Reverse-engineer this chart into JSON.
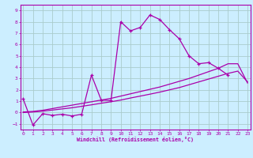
{
  "xlabel": "Windchill (Refroidissement éolien,°C)",
  "bg_color": "#cceeff",
  "grid_color": "#aacccc",
  "line_color": "#aa00aa",
  "spine_color": "#aa00aa",
  "x_ticks": [
    0,
    1,
    2,
    3,
    4,
    5,
    6,
    7,
    8,
    9,
    10,
    11,
    12,
    13,
    14,
    15,
    16,
    17,
    18,
    19,
    20,
    21,
    22,
    23
  ],
  "y_ticks": [
    -1,
    0,
    1,
    2,
    3,
    4,
    5,
    6,
    7,
    8,
    9
  ],
  "xlim": [
    -0.3,
    23.3
  ],
  "ylim": [
    -1.5,
    9.5
  ],
  "series0_x": [
    0,
    1,
    2,
    3,
    4,
    5,
    6,
    7,
    8,
    9,
    10,
    11,
    12,
    13,
    14,
    15,
    16,
    17,
    18,
    19,
    20,
    21
  ],
  "series0_y": [
    1.2,
    -1.1,
    -0.1,
    -0.25,
    -0.15,
    -0.3,
    -0.15,
    3.3,
    1.1,
    1.05,
    8.0,
    7.2,
    7.5,
    8.6,
    8.2,
    7.3,
    6.5,
    5.0,
    4.3,
    4.4,
    3.9,
    3.3
  ],
  "series1_x": [
    0,
    1,
    2,
    3,
    4,
    5,
    6,
    7,
    8,
    9,
    10,
    11,
    12,
    13,
    14,
    15,
    16,
    17,
    18,
    19,
    20,
    21,
    22,
    23
  ],
  "series1_y": [
    0.05,
    0.1,
    0.2,
    0.35,
    0.5,
    0.65,
    0.8,
    0.95,
    1.1,
    1.25,
    1.45,
    1.65,
    1.85,
    2.05,
    2.25,
    2.5,
    2.75,
    3.0,
    3.3,
    3.6,
    3.9,
    4.3,
    4.3,
    2.6
  ],
  "series2_x": [
    0,
    1,
    2,
    3,
    4,
    5,
    6,
    7,
    8,
    9,
    10,
    11,
    12,
    13,
    14,
    15,
    16,
    17,
    18,
    19,
    20,
    21,
    22,
    23
  ],
  "series2_y": [
    0.0,
    0.05,
    0.12,
    0.22,
    0.32,
    0.42,
    0.55,
    0.68,
    0.82,
    0.95,
    1.1,
    1.28,
    1.45,
    1.62,
    1.8,
    2.0,
    2.2,
    2.45,
    2.7,
    2.95,
    3.2,
    3.45,
    3.65,
    2.7
  ]
}
